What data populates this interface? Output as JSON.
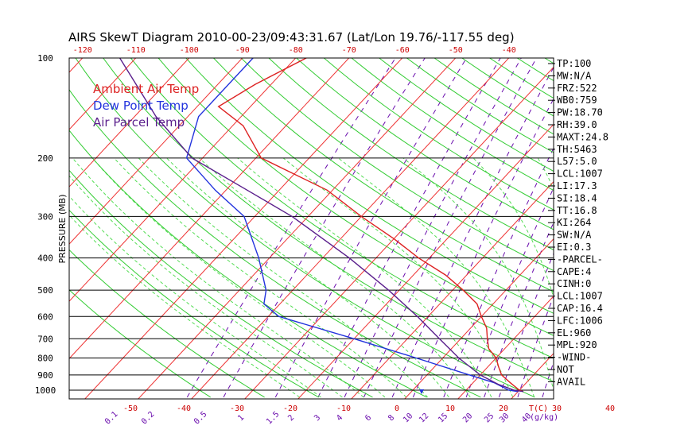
{
  "title": "AIRS SkewT Diagram 2010-00-23/09:43:31.67 (Lat/Lon 19.76/-117.55 deg)",
  "ylabel": "PRESSURE (MB)",
  "legend": [
    {
      "label": "Ambient Air Temp",
      "color": "#dd2222"
    },
    {
      "label": "Dew Point Temp",
      "color": "#2233dd"
    },
    {
      "label": "Air Parcel Temp",
      "color": "#5a1f8c"
    }
  ],
  "indices": [
    "TP:100",
    "MW:N/A",
    "FRZ:522",
    "WB0:759",
    "PW:18.70",
    "RH:39.0",
    "MAXT:24.8",
    "TH:5463",
    "L57:5.0",
    "LCL:1007",
    "LI:17.3",
    "SI:18.4",
    "TT:16.8",
    "KI:264",
    "SW:N/A",
    "EI:0.3",
    "-PARCEL-",
    "CAPE:4",
    "CINH:0",
    "LCL:1007",
    "CAP:16.4",
    "LFC:1006",
    "EL:960",
    "MPL:920",
    "-WIND-",
    "NOT",
    "AVAIL"
  ],
  "chart_data": {
    "type": "line",
    "title": "AIRS SkewT Diagram 2010-00-23/09:43:31.67 (Lat/Lon 19.76/-117.55 deg)",
    "ylabel": "PRESSURE (MB)",
    "xlabel": "T(C)",
    "mixing_label": "(g/kg)",
    "y_scale": "log",
    "ylim": [
      1050,
      100
    ],
    "y_ticks": [
      100,
      200,
      300,
      400,
      500,
      600,
      700,
      800,
      900,
      1000
    ],
    "isobars": [
      200,
      300,
      400,
      500,
      600,
      700,
      800,
      900,
      1000
    ],
    "x_ticks_top": [
      -120,
      -110,
      -100,
      -90,
      -80,
      -70,
      -60,
      -50,
      -40
    ],
    "x_ticks_bottom": [
      -50,
      -40,
      -30,
      -20,
      -10,
      0,
      10,
      20,
      30,
      40
    ],
    "mixing_ratio_ticks": [
      "0.1",
      "0.2",
      "0.5",
      "1",
      "1.5",
      "2",
      "3",
      "4",
      "6",
      "8",
      "10",
      "12",
      "15",
      "20",
      "25",
      "30",
      "40"
    ],
    "series": [
      {
        "name": "Ambient Air Temp",
        "color": "#dd2222",
        "points": [
          [
            100,
            -78
          ],
          [
            120,
            -83
          ],
          [
            140,
            -86
          ],
          [
            160,
            -78
          ],
          [
            200,
            -69
          ],
          [
            250,
            -51
          ],
          [
            300,
            -40
          ],
          [
            350,
            -30
          ],
          [
            400,
            -22
          ],
          [
            450,
            -14
          ],
          [
            500,
            -8
          ],
          [
            550,
            -3
          ],
          [
            600,
            0
          ],
          [
            650,
            3
          ],
          [
            700,
            5
          ],
          [
            750,
            7
          ],
          [
            800,
            10
          ],
          [
            850,
            12
          ],
          [
            900,
            14
          ],
          [
            950,
            17
          ],
          [
            1000,
            20
          ],
          [
            1010,
            21
          ]
        ]
      },
      {
        "name": "Dew Point Temp",
        "color": "#2233dd",
        "points": [
          [
            100,
            -88
          ],
          [
            150,
            -88
          ],
          [
            200,
            -83
          ],
          [
            250,
            -72
          ],
          [
            300,
            -62
          ],
          [
            400,
            -52
          ],
          [
            500,
            -45
          ],
          [
            550,
            -43
          ],
          [
            600,
            -38
          ],
          [
            700,
            -20
          ],
          [
            800,
            -5
          ],
          [
            900,
            8
          ],
          [
            950,
            14
          ],
          [
            1000,
            18
          ],
          [
            1010,
            20
          ]
        ]
      },
      {
        "name": "Air Parcel Temp",
        "color": "#5a1f8c",
        "points": [
          [
            100,
            -113
          ],
          [
            150,
            -96
          ],
          [
            200,
            -82
          ],
          [
            250,
            -66
          ],
          [
            300,
            -53
          ],
          [
            400,
            -35
          ],
          [
            500,
            -22
          ],
          [
            600,
            -12
          ],
          [
            700,
            -4
          ],
          [
            800,
            3
          ],
          [
            900,
            10
          ],
          [
            960,
            15
          ],
          [
            1000,
            19
          ],
          [
            1010,
            21
          ]
        ]
      }
    ]
  }
}
